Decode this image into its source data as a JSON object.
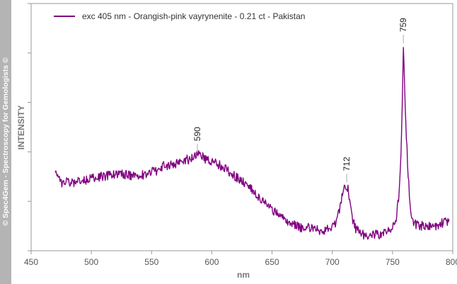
{
  "watermark": "© Spec4Gem - Spectroscopy for Gemologists ©",
  "chart_data": {
    "type": "line",
    "xlabel": "nm",
    "ylabel": "INTENSITY",
    "xlim": [
      450,
      800
    ],
    "ylim": [
      0,
      1
    ],
    "x_ticks": [
      450,
      500,
      550,
      600,
      650,
      700,
      750,
      800
    ],
    "y_axis_numbers_shown": false,
    "grid": false,
    "legend_position": "top-left",
    "series": [
      {
        "name": "exc 405 nm - Orangish-pink vayrynenite - 0.21 ct - Pakistan",
        "color": "#800080",
        "x": [
          470,
          475,
          480,
          485,
          490,
          495,
          500,
          505,
          510,
          515,
          520,
          525,
          530,
          535,
          540,
          545,
          550,
          555,
          560,
          565,
          570,
          575,
          580,
          585,
          588,
          590,
          595,
          600,
          605,
          610,
          615,
          620,
          625,
          630,
          635,
          640,
          645,
          650,
          655,
          660,
          665,
          670,
          675,
          680,
          685,
          690,
          695,
          700,
          704,
          707,
          709,
          711,
          713,
          715,
          717,
          720,
          725,
          730,
          735,
          740,
          745,
          750,
          753,
          755,
          757,
          758,
          759,
          760,
          761,
          763,
          765,
          768,
          772,
          776,
          780,
          785,
          790,
          795,
          797
        ],
        "y": [
          0.31,
          0.27,
          0.28,
          0.27,
          0.28,
          0.28,
          0.29,
          0.3,
          0.3,
          0.31,
          0.31,
          0.31,
          0.31,
          0.3,
          0.31,
          0.31,
          0.32,
          0.33,
          0.35,
          0.35,
          0.36,
          0.37,
          0.38,
          0.39,
          0.4,
          0.4,
          0.38,
          0.37,
          0.36,
          0.34,
          0.32,
          0.3,
          0.28,
          0.25,
          0.23,
          0.2,
          0.17,
          0.15,
          0.12,
          0.1,
          0.08,
          0.07,
          0.06,
          0.06,
          0.06,
          0.05,
          0.05,
          0.06,
          0.1,
          0.17,
          0.23,
          0.26,
          0.24,
          0.17,
          0.1,
          0.05,
          0.03,
          0.02,
          0.03,
          0.03,
          0.04,
          0.06,
          0.1,
          0.2,
          0.4,
          0.62,
          0.91,
          0.74,
          0.55,
          0.3,
          0.15,
          0.08,
          0.07,
          0.07,
          0.07,
          0.07,
          0.08,
          0.09,
          0.1
        ]
      }
    ],
    "annotations": [
      {
        "text": "590",
        "x": 588,
        "y": 0.4
      },
      {
        "text": "712",
        "x": 712,
        "y": 0.26
      },
      {
        "text": "759",
        "x": 759,
        "y": 0.91
      }
    ]
  }
}
